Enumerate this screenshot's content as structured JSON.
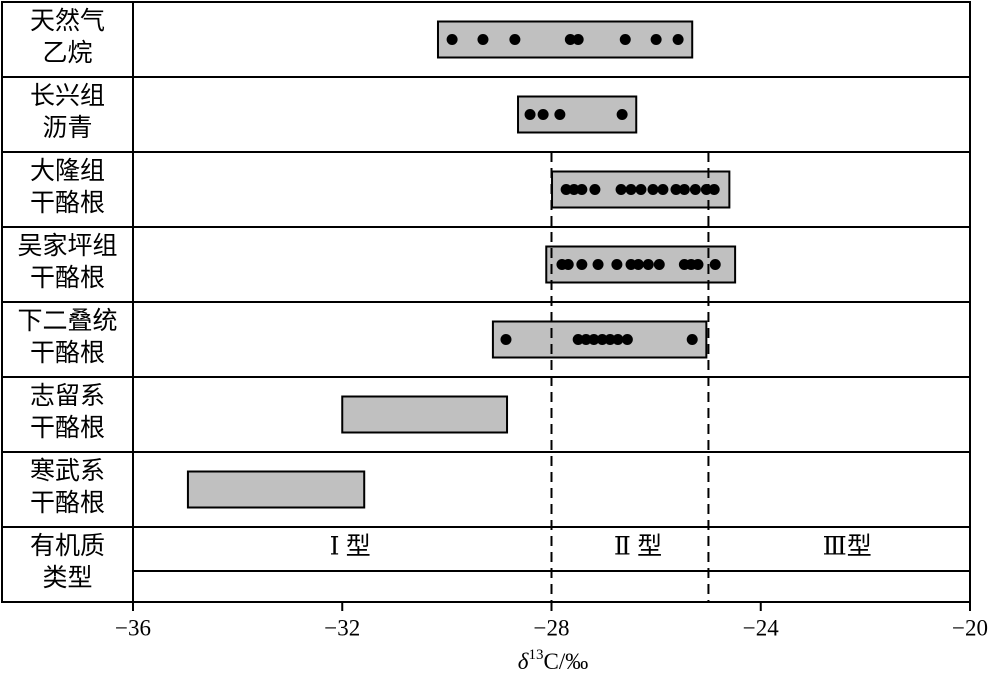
{
  "chart_data": {
    "type": "range_dot",
    "rows": [
      {
        "label": [
          "天然气",
          "乙烷"
        ],
        "range": [
          -30.17,
          -25.31
        ],
        "values": [
          -29.9,
          -29.31,
          -28.7,
          -27.64,
          -27.49,
          -26.59,
          -26.0,
          -25.58
        ]
      },
      {
        "label": [
          "长兴组",
          "沥青"
        ],
        "range": [
          -28.64,
          -26.38
        ],
        "values": [
          -28.41,
          -28.16,
          -27.84,
          -26.65
        ]
      },
      {
        "label": [
          "大隆组",
          "干酪根"
        ],
        "range": [
          -27.99,
          -24.6
        ],
        "values": [
          -27.72,
          -27.57,
          -27.42,
          -27.17,
          -26.67,
          -26.48,
          -26.29,
          -26.06,
          -25.87,
          -25.62,
          -25.46,
          -25.25,
          -25.04,
          -24.89
        ]
      },
      {
        "label": [
          "吴家坪组",
          "干酪根"
        ],
        "range": [
          -28.1,
          -24.49
        ],
        "values": [
          -27.8,
          -27.68,
          -27.42,
          -27.11,
          -26.75,
          -26.48,
          -26.34,
          -26.15,
          -25.94,
          -25.46,
          -25.33,
          -25.2,
          -24.87
        ]
      },
      {
        "label": [
          "下二叠统",
          "干酪根"
        ],
        "range": [
          -29.12,
          -25.04
        ],
        "values": [
          -28.87,
          -27.49,
          -27.34,
          -27.19,
          -27.03,
          -26.88,
          -26.73,
          -26.55,
          -25.31
        ]
      },
      {
        "label": [
          "志留系",
          "干酪根"
        ],
        "range": [
          -32.0,
          -28.85
        ],
        "values": []
      },
      {
        "label": [
          "寒武系",
          "干酪根"
        ],
        "range": [
          -34.95,
          -31.58
        ],
        "values": []
      }
    ],
    "type_row": {
      "label": [
        "有机质",
        "类型"
      ],
      "zones": [
        {
          "label": "Ⅰ 型",
          "range": [
            -36,
            -28
          ]
        },
        {
          "label": "Ⅱ 型",
          "range": [
            -28,
            -25
          ]
        },
        {
          "label": "Ⅲ型",
          "range": [
            -25,
            -20
          ]
        }
      ]
    },
    "xlim": [
      -36,
      -20
    ],
    "xticks": [
      {
        "value": -36,
        "label": "−36"
      },
      {
        "value": -32,
        "label": "−32"
      },
      {
        "value": -28,
        "label": "−28"
      },
      {
        "value": -24,
        "label": "−24"
      },
      {
        "value": -20,
        "label": "−20"
      }
    ],
    "xlabel": {
      "symbol": "δ",
      "superscript": "13",
      "rest": "C/‰"
    },
    "box_color": "#c0c0c0",
    "dot_color": "#000000"
  }
}
